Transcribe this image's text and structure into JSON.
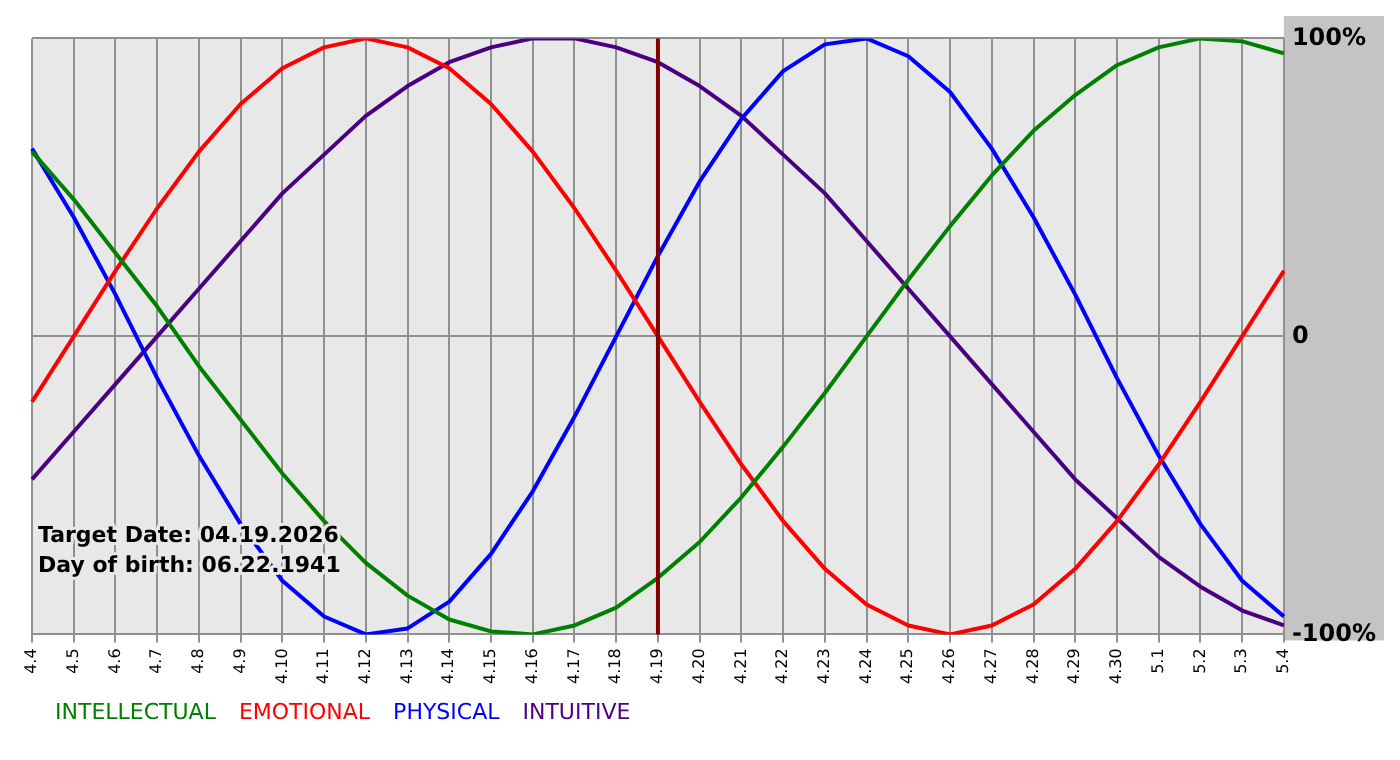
{
  "chart_data": {
    "type": "line",
    "categories": [
      "4.4",
      "4.5",
      "4.6",
      "4.7",
      "4.8",
      "4.9",
      "4.10",
      "4.11",
      "4.12",
      "4.13",
      "4.14",
      "4.15",
      "4.16",
      "4.17",
      "4.18",
      "4.19",
      "4.20",
      "4.21",
      "4.22",
      "4.23",
      "4.24",
      "4.25",
      "4.26",
      "4.27",
      "4.28",
      "4.29",
      "4.30",
      "5.1",
      "5.2",
      "5.3",
      "5.4"
    ],
    "series": [
      {
        "name": "INTELLECTUAL",
        "color": "#008000",
        "values": [
          62,
          46,
          28,
          10,
          -10,
          -28,
          -46,
          -62,
          -76,
          -87,
          -95,
          -99,
          -100,
          -97,
          -91,
          -81,
          -69,
          -54,
          -37,
          -19,
          0,
          19,
          37,
          54,
          69,
          81,
          91,
          97,
          100,
          99,
          95
        ]
      },
      {
        "name": "EMOTIONAL",
        "color": "#ff0000",
        "values": [
          -22,
          0,
          22,
          43,
          62,
          78,
          90,
          97,
          100,
          97,
          90,
          78,
          62,
          43,
          22,
          0,
          -22,
          -43,
          -62,
          -78,
          -90,
          -97,
          -100,
          -97,
          -90,
          -78,
          -62,
          -43,
          -22,
          0,
          22
        ]
      },
      {
        "name": "PHYSICAL",
        "color": "#0000ff",
        "values": [
          63,
          40,
          14,
          -14,
          -40,
          -63,
          -82,
          -94,
          -100,
          -98,
          -89,
          -73,
          -52,
          -27,
          0,
          27,
          52,
          73,
          89,
          98,
          100,
          94,
          82,
          63,
          40,
          14,
          -14,
          -40,
          -63,
          -82,
          -94
        ]
      },
      {
        "name": "INTUITIVE",
        "color": "#4b0082",
        "values": [
          -48,
          -32,
          -16,
          0,
          16,
          32,
          48,
          61,
          74,
          84,
          92,
          97,
          100,
          100,
          97,
          92,
          84,
          74,
          61,
          48,
          32,
          16,
          0,
          -16,
          -32,
          -48,
          -61,
          -74,
          -84,
          -92,
          -97
        ]
      }
    ],
    "ylim": [
      -100,
      100
    ],
    "yticks": [
      {
        "value": -100,
        "label": "-100%"
      },
      0,
      {
        "value": 100,
        "label": "100%"
      }
    ],
    "grid": true,
    "legend": "bottom left",
    "marker": "none",
    "line_style": "solid",
    "ref_lines": [
      {
        "axis": "x",
        "value": "4.19",
        "color": "#800000"
      }
    ],
    "annotations": [
      "Target Date: 04.19.2026",
      "Day of birth: 06.22.1941"
    ]
  }
}
